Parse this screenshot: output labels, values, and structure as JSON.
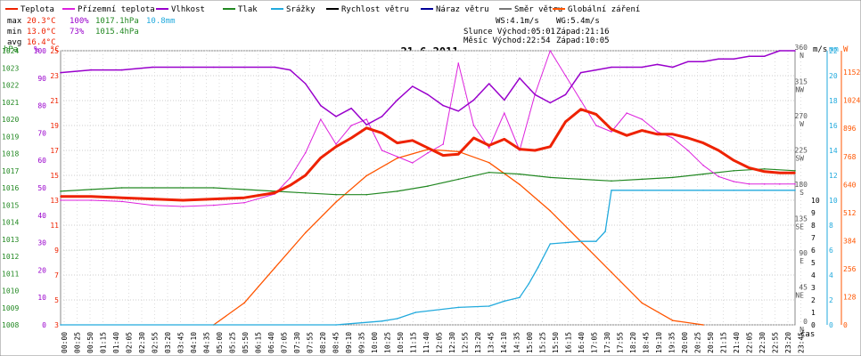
{
  "legend": {
    "items": [
      {
        "label": "Teplota",
        "color": "#ee2200"
      },
      {
        "label": "Přízemní teplota",
        "color": "#dd22dd"
      },
      {
        "label": "Vlhkost",
        "color": "#9900cc"
      },
      {
        "label": "Tlak",
        "color": "#228822"
      },
      {
        "label": "Srážky",
        "color": "#22aadd"
      },
      {
        "label": "Rychlost větru",
        "color": "#000000"
      },
      {
        "label": "Náraz větru",
        "color": "#000099"
      },
      {
        "label": "Směr větru",
        "color": "#777777"
      },
      {
        "label": "Globální záření",
        "color": "#ff5500"
      }
    ]
  },
  "stats": {
    "max_label": "max",
    "min_label": "min",
    "avg_label": "avg",
    "max_temp": "20.3°C",
    "max_hum": "100%",
    "max_press": "1017.1hPa",
    "max_rain": "10.8mm",
    "min_temp": "13.0°C",
    "min_hum": "73%",
    "min_press": "1015.4hPa",
    "avg_temp": "16.4°C"
  },
  "wind_info": {
    "ws": "WS:4.1m/s",
    "wg": "WG:5.4m/s",
    "sun_rise": "Slunce Východ:05:01",
    "sun_set": "Západ:21:16",
    "moon_rise": "Měsíc Východ:22:54",
    "moon_set": "Západ:10:05"
  },
  "chart_data": {
    "type": "line",
    "title": "21.6.2011",
    "xlabel": "čas",
    "axes": {
      "pressure": {
        "unit": "hPa",
        "ticks": [
          1008,
          1009,
          1010,
          1011,
          1012,
          1013,
          1014,
          1015,
          1016,
          1017,
          1018,
          1019,
          1020,
          1021,
          1022,
          1023,
          1024
        ],
        "color": "#228822"
      },
      "humidity": {
        "unit": "%",
        "ticks": [
          0,
          10,
          20,
          30,
          40,
          50,
          60,
          70,
          80,
          90,
          100
        ],
        "color": "#9900cc"
      },
      "temperature": {
        "unit": "°C",
        "ticks": [
          3,
          5,
          7,
          9,
          11,
          13,
          15,
          17,
          19,
          21,
          23,
          25
        ],
        "color": "#ee2200"
      },
      "wind_dir": {
        "ticks": [
          {
            "v": 0,
            "l": "0",
            "c": "N"
          },
          {
            "v": 45,
            "l": "45",
            "c": "NE"
          },
          {
            "v": 90,
            "l": "90",
            "c": "E"
          },
          {
            "v": 135,
            "l": "135",
            "c": "SE"
          },
          {
            "v": 180,
            "l": "180",
            "c": "S"
          },
          {
            "v": 225,
            "l": "225",
            "c": "SW"
          },
          {
            "v": 270,
            "l": "270",
            "c": "W"
          },
          {
            "v": 315,
            "l": "315",
            "c": "NW"
          },
          {
            "v": 360,
            "l": "360",
            "c": "N"
          }
        ]
      },
      "wind_speed": {
        "unit": "m/s",
        "ticks": [
          0,
          1,
          2,
          3,
          4,
          5,
          6,
          7,
          8,
          9,
          10
        ],
        "color": "#000000"
      },
      "rain": {
        "unit": "mm",
        "ticks": [
          0,
          2,
          4,
          6,
          8,
          10,
          12,
          14,
          16,
          18,
          20,
          22
        ],
        "color": "#22aadd"
      },
      "radiation": {
        "unit": "W",
        "ticks": [
          0,
          128,
          256,
          384,
          512,
          640,
          768,
          896,
          1024,
          1152
        ],
        "color": "#ff5500"
      }
    },
    "x_ticks": [
      "00:00",
      "00:25",
      "00:50",
      "01:15",
      "01:40",
      "02:05",
      "02:30",
      "02:55",
      "03:20",
      "03:45",
      "04:10",
      "04:35",
      "05:00",
      "05:25",
      "05:50",
      "06:15",
      "06:40",
      "07:05",
      "07:30",
      "07:55",
      "08:20",
      "08:45",
      "09:10",
      "09:35",
      "10:00",
      "10:25",
      "10:50",
      "11:15",
      "11:40",
      "12:05",
      "12:30",
      "12:55",
      "13:20",
      "13:45",
      "14:10",
      "14:35",
      "15:00",
      "15:25",
      "15:50",
      "16:15",
      "16:40",
      "17:05",
      "17:30",
      "17:55",
      "18:20",
      "18:45",
      "19:10",
      "19:35",
      "20:00",
      "20:25",
      "20:50",
      "21:15",
      "21:40",
      "22:05",
      "22:30",
      "22:55",
      "23:20",
      "23:45"
    ],
    "series": [
      {
        "name": "Teplota",
        "key": "temp",
        "color": "#ee2200",
        "x": [
          0,
          1,
          2,
          3,
          4,
          5,
          6,
          7,
          7.5,
          8,
          8.5,
          9,
          9.5,
          10,
          10.5,
          11,
          11.5,
          12,
          12.5,
          13,
          13.5,
          14,
          14.5,
          15,
          15.5,
          16,
          16.5,
          17,
          17.5,
          18,
          18.5,
          19,
          19.5,
          20,
          20.5,
          21,
          21.5,
          22,
          22.5,
          23,
          23.5,
          24
        ],
        "y": [
          13.3,
          13.3,
          13.2,
          13.1,
          13.0,
          13.1,
          13.2,
          13.6,
          14.2,
          15.0,
          16.4,
          17.3,
          18.0,
          18.8,
          18.4,
          17.6,
          17.8,
          17.2,
          16.6,
          16.7,
          18.0,
          17.4,
          17.9,
          17.1,
          17.0,
          17.3,
          19.3,
          20.3,
          19.9,
          18.7,
          18.2,
          18.6,
          18.3,
          18.3,
          18.0,
          17.6,
          17.0,
          16.2,
          15.6,
          15.3,
          15.2,
          15.2
        ]
      },
      {
        "name": "Přízemní teplota",
        "key": "ground",
        "color": "#dd22dd",
        "x": [
          0,
          1,
          2,
          3,
          4,
          5,
          6,
          7,
          7.5,
          8,
          8.5,
          9,
          9.5,
          10,
          10.5,
          11,
          11.5,
          12,
          12.5,
          13,
          13.5,
          14,
          14.5,
          15,
          15.5,
          16,
          16.5,
          17,
          17.5,
          18,
          18.5,
          19,
          19.5,
          20,
          20.5,
          21,
          21.5,
          22,
          22.5,
          23,
          23.5,
          24
        ],
        "y": [
          13.0,
          13.0,
          12.9,
          12.6,
          12.5,
          12.6,
          12.8,
          13.5,
          14.8,
          16.8,
          19.5,
          17.5,
          19.0,
          19.5,
          17.0,
          16.5,
          16.0,
          16.8,
          17.5,
          24.0,
          19.0,
          17.2,
          20.0,
          17.0,
          21.5,
          25.0,
          23.0,
          21.0,
          19.0,
          18.5,
          20.0,
          19.5,
          18.5,
          18.0,
          17.0,
          15.8,
          14.9,
          14.5,
          14.3,
          14.3,
          14.3,
          14.3
        ]
      },
      {
        "name": "Vlhkost",
        "key": "hum",
        "color": "#9900cc",
        "x": [
          0,
          1,
          2,
          3,
          4,
          5,
          6,
          7,
          7.5,
          8,
          8.5,
          9,
          9.5,
          10,
          10.5,
          11,
          11.5,
          12,
          12.5,
          13,
          13.5,
          14,
          14.5,
          15,
          15.5,
          16,
          16.5,
          17,
          17.5,
          18,
          18.5,
          19,
          19.5,
          20,
          20.5,
          21,
          21.5,
          22,
          22.5,
          23,
          23.5,
          24
        ],
        "y": [
          92,
          93,
          93,
          94,
          94,
          94,
          94,
          94,
          93,
          88,
          80,
          76,
          79,
          73,
          76,
          82,
          87,
          84,
          80,
          78,
          82,
          88,
          82,
          90,
          84,
          81,
          84,
          92,
          93,
          94,
          94,
          94,
          95,
          94,
          96,
          96,
          97,
          97,
          98,
          98,
          100,
          100
        ]
      },
      {
        "name": "Tlak",
        "key": "press",
        "color": "#228822",
        "x": [
          0,
          1,
          2,
          3,
          4,
          5,
          6,
          7,
          8,
          9,
          10,
          11,
          12,
          13,
          14,
          15,
          16,
          17,
          18,
          19,
          20,
          21,
          22,
          23,
          24
        ],
        "y": [
          1015.8,
          1015.9,
          1016.0,
          1016.0,
          1016.0,
          1016.0,
          1015.9,
          1015.8,
          1015.7,
          1015.6,
          1015.6,
          1015.8,
          1016.1,
          1016.5,
          1016.9,
          1016.8,
          1016.6,
          1016.5,
          1016.4,
          1016.5,
          1016.6,
          1016.8,
          1017.0,
          1017.1,
          1017.0
        ]
      },
      {
        "name": "Srážky",
        "key": "rain",
        "color": "#22aadd",
        "x": [
          0,
          9,
          10.5,
          11,
          11.6,
          13,
          14,
          14.5,
          15,
          15.3,
          15.6,
          16,
          16.5,
          17,
          17.5,
          17.8,
          18,
          19,
          20,
          21,
          22,
          23,
          24
        ],
        "y": [
          0,
          0,
          0.3,
          0.5,
          1.0,
          1.4,
          1.5,
          1.9,
          2.2,
          3.3,
          4.6,
          6.5,
          6.6,
          6.7,
          6.7,
          7.5,
          10.8,
          10.8,
          10.8,
          10.8,
          10.8,
          10.8,
          10.8
        ]
      },
      {
        "name": "Globální záření",
        "key": "rad",
        "color": "#ff5500",
        "x": [
          5,
          6,
          7,
          8,
          9,
          10,
          11,
          12,
          13,
          14,
          15,
          16,
          17,
          18,
          19,
          20,
          21
        ],
        "y": [
          0,
          100,
          260,
          420,
          560,
          680,
          760,
          800,
          790,
          740,
          640,
          520,
          380,
          240,
          100,
          20,
          0
        ]
      }
    ]
  }
}
